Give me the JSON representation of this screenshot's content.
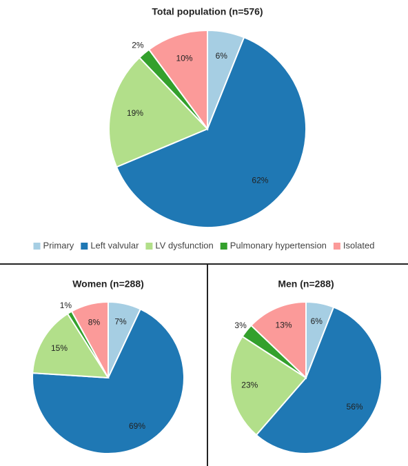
{
  "chart_data": [
    {
      "type": "pie",
      "title": "Total population (n=576)",
      "categories": [
        "Primary",
        "Left valvular",
        "LV dysfunction",
        "Pulmonary hypertension",
        "Isolated"
      ],
      "values": [
        6,
        62,
        19,
        2,
        10
      ],
      "value_labels": [
        "6%",
        "62%",
        "19%",
        "2%",
        "10%"
      ],
      "colors": [
        "#a6cee3",
        "#1f78b4",
        "#b2df8a",
        "#33a02c",
        "#fb9a99"
      ],
      "legend": "bottom"
    },
    {
      "type": "pie",
      "title": "Women (n=288)",
      "values": [
        7,
        69,
        15,
        1,
        8
      ],
      "value_labels": [
        "7%",
        "69%",
        "15%",
        "1%",
        "8%"
      ],
      "colors": [
        "#a6cee3",
        "#1f78b4",
        "#b2df8a",
        "#33a02c",
        "#fb9a99"
      ]
    },
    {
      "type": "pie",
      "title": "Men (n=288)",
      "values": [
        6,
        56,
        23,
        3,
        13
      ],
      "value_labels": [
        "6%",
        "56%",
        "23%",
        "3%",
        "13%"
      ],
      "colors": [
        "#a6cee3",
        "#1f78b4",
        "#b2df8a",
        "#33a02c",
        "#fb9a99"
      ]
    }
  ]
}
